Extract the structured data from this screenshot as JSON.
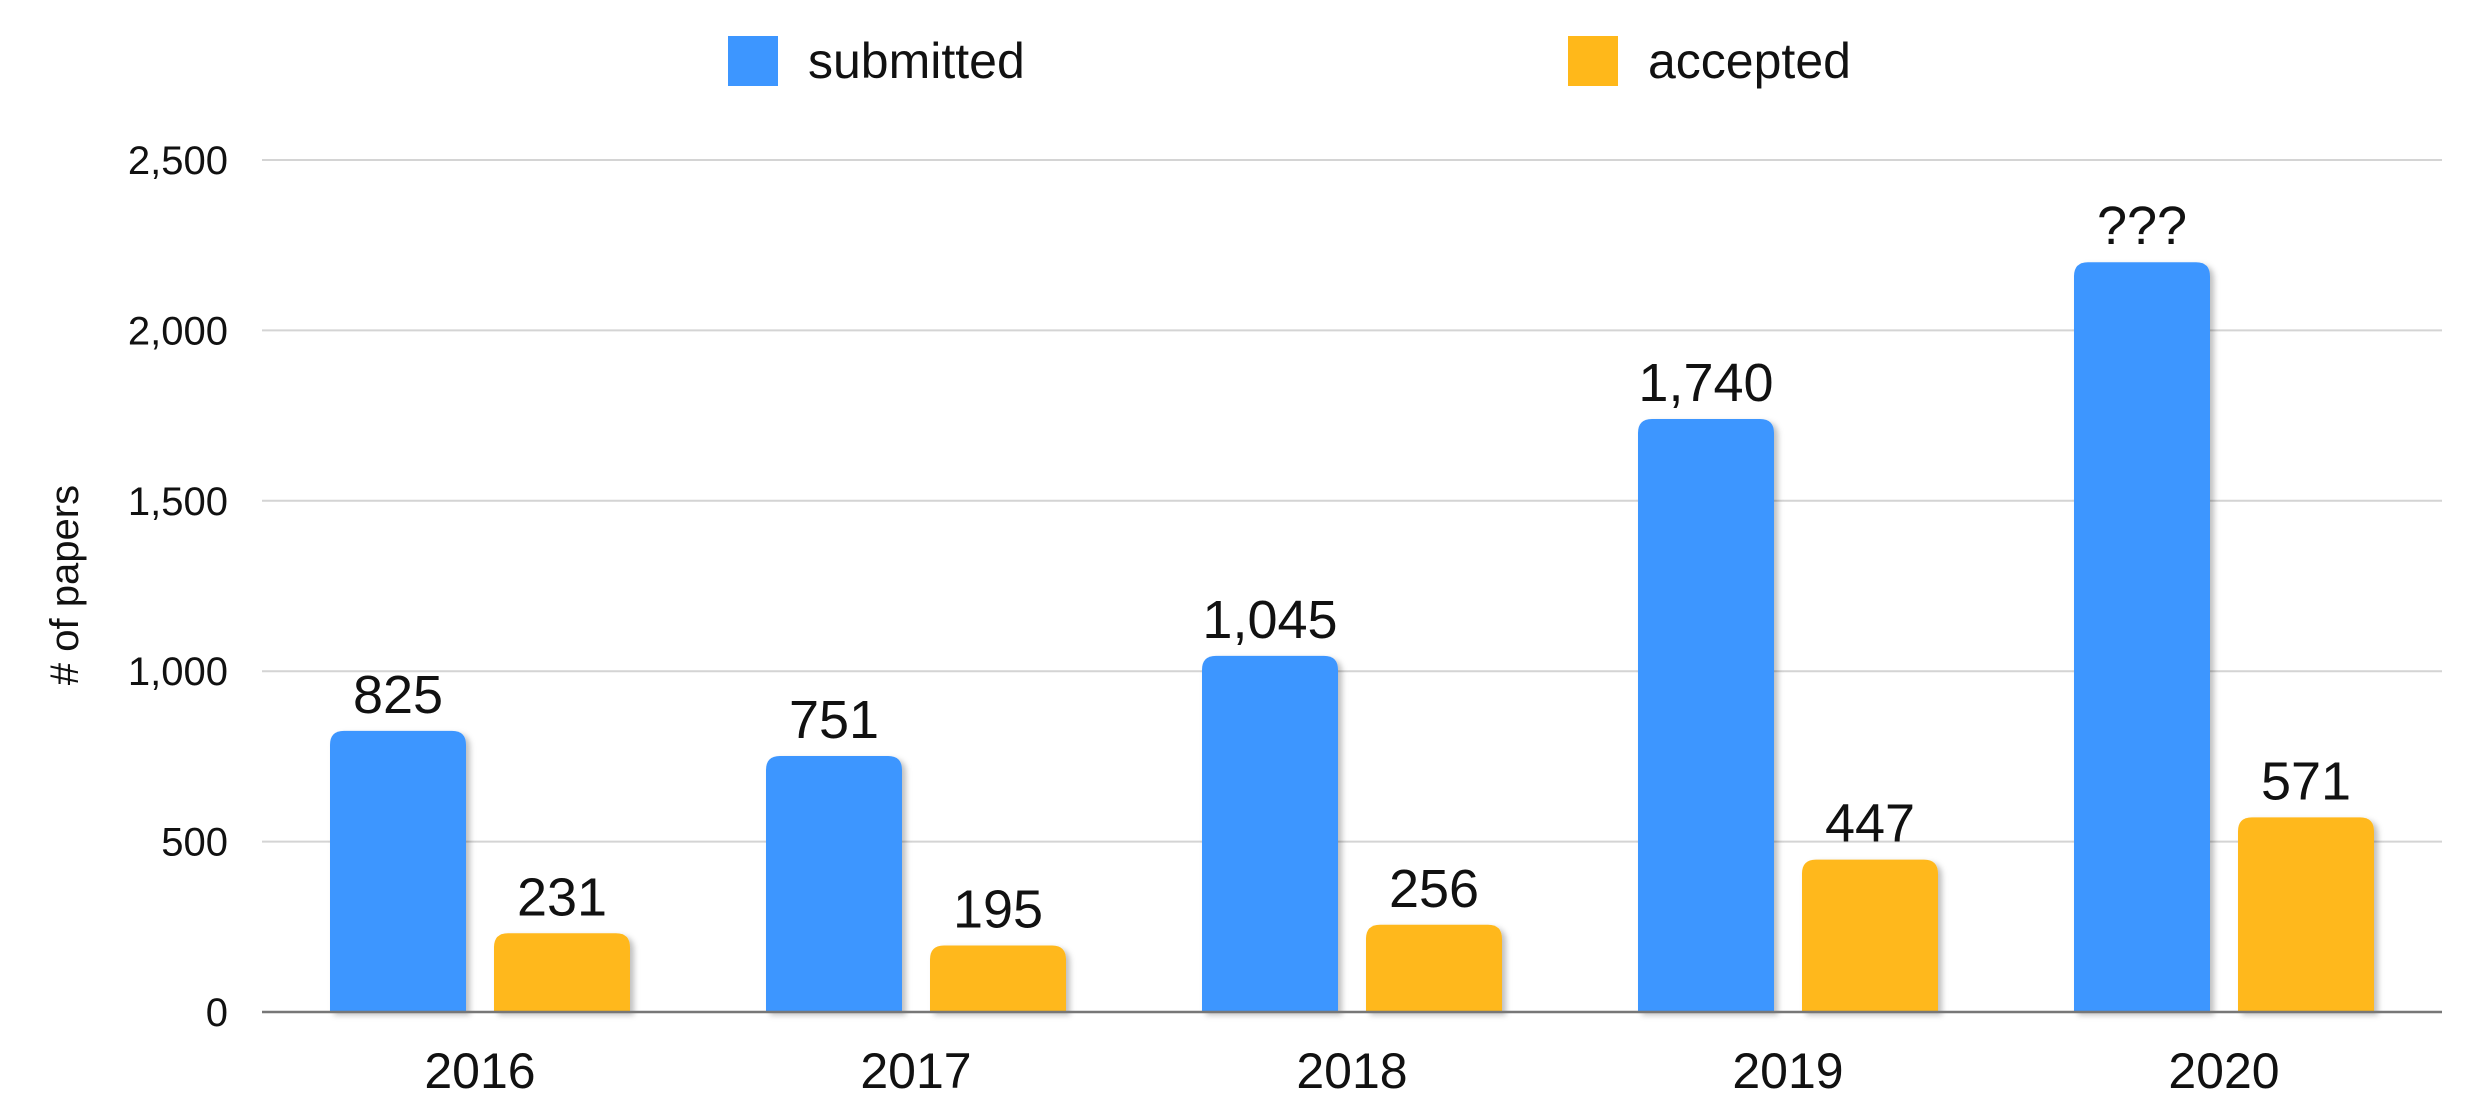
{
  "chart_data": {
    "type": "bar",
    "title": "",
    "xlabel": "",
    "ylabel": "# of papers",
    "categories": [
      "2016",
      "2017",
      "2018",
      "2019",
      "2020"
    ],
    "series": [
      {
        "name": "submitted",
        "values": [
          825,
          751,
          1045,
          1740,
          2200
        ],
        "data_labels": [
          "825",
          "751",
          "1,045",
          "1,740",
          "???"
        ]
      },
      {
        "name": "accepted",
        "values": [
          231,
          195,
          256,
          447,
          571
        ],
        "data_labels": [
          "231",
          "195",
          "256",
          "447",
          "571"
        ]
      }
    ],
    "ylim": [
      0,
      2500
    ],
    "yticks": [
      {
        "value": 0,
        "label": "0"
      },
      {
        "value": 500,
        "label": "500"
      },
      {
        "value": 1000,
        "label": "1,000"
      },
      {
        "value": 1500,
        "label": "1,500"
      },
      {
        "value": 2000,
        "label": "2,000"
      },
      {
        "value": 2500,
        "label": "2,500"
      }
    ],
    "grid": true,
    "legend_position": "top-center",
    "colors": {
      "submitted": "#3d96ff",
      "accepted": "#ffb81a",
      "grid": "#d4d4d4",
      "axis": "#777777"
    }
  }
}
